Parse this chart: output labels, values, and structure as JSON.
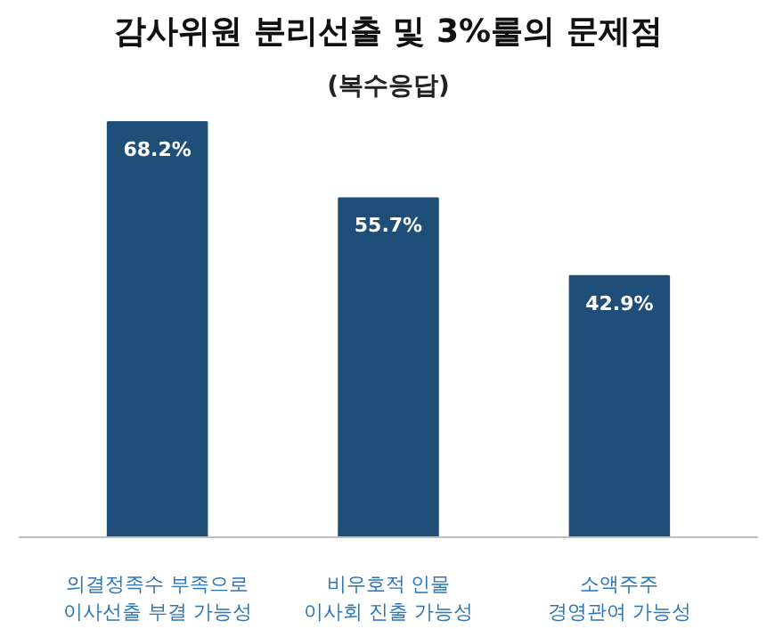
{
  "chart_data": {
    "type": "bar",
    "title": "감사위원 분리선출 및 3%룰의 문제점",
    "subtitle": "(복수응답)",
    "categories": [
      "의결정족수 부족으로\n이사선출 부결 가능성",
      "비우호적 인물\n이사회 진출 가능성",
      "소액주주\n경영관여 가능성"
    ],
    "values": [
      68.2,
      55.7,
      42.9
    ],
    "value_labels": [
      "68.2%",
      "55.7%",
      "42.9%"
    ],
    "color": "#1f4e79",
    "grid": false
  }
}
